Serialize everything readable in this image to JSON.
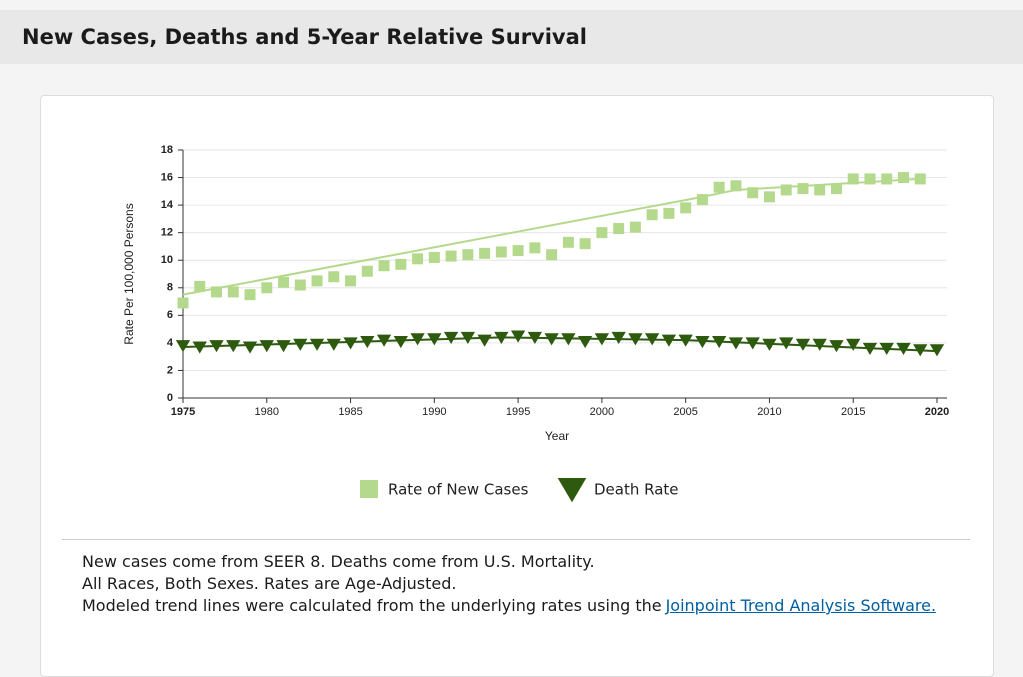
{
  "header": {
    "title": "New Cases, Deaths and 5-Year Relative Survival"
  },
  "chart_data": {
    "type": "scatter",
    "x_label": "Year",
    "y_label": "Rate Per 100,000 Persons",
    "xlim": [
      1975,
      2020
    ],
    "xticks": [
      1975,
      1980,
      1985,
      1990,
      1995,
      2000,
      2005,
      2010,
      2015,
      2020
    ],
    "ylim": [
      0,
      18
    ],
    "yticks": [
      0,
      2,
      4,
      6,
      8,
      10,
      12,
      14,
      16,
      18
    ],
    "grid": true,
    "series": [
      {
        "name": "Rate of New Cases",
        "color": "#b5d98c",
        "marker": "square",
        "x": [
          1975,
          1976,
          1977,
          1978,
          1979,
          1980,
          1981,
          1982,
          1983,
          1984,
          1985,
          1986,
          1987,
          1988,
          1989,
          1990,
          1991,
          1992,
          1993,
          1994,
          1995,
          1996,
          1997,
          1998,
          1999,
          2000,
          2001,
          2002,
          2003,
          2004,
          2005,
          2006,
          2007,
          2008,
          2009,
          2010,
          2011,
          2012,
          2013,
          2014,
          2015,
          2016,
          2017,
          2018,
          2019
        ],
        "values": [
          6.9,
          8.1,
          7.7,
          7.7,
          7.5,
          8.0,
          8.4,
          8.2,
          8.5,
          8.8,
          8.5,
          9.2,
          9.6,
          9.7,
          10.1,
          10.2,
          10.3,
          10.4,
          10.5,
          10.6,
          10.7,
          10.9,
          10.4,
          11.3,
          11.2,
          12.0,
          12.3,
          12.4,
          13.3,
          13.4,
          13.8,
          14.4,
          15.3,
          15.4,
          14.9,
          14.6,
          15.1,
          15.2,
          15.1,
          15.2,
          15.9,
          15.9,
          15.9,
          16.0,
          15.9
        ]
      },
      {
        "name": "Death Rate",
        "color": "#2d5a0e",
        "marker": "triangle-down",
        "x": [
          1975,
          1976,
          1977,
          1978,
          1979,
          1980,
          1981,
          1982,
          1983,
          1984,
          1985,
          1986,
          1987,
          1988,
          1989,
          1990,
          1991,
          1992,
          1993,
          1994,
          1995,
          1996,
          1997,
          1998,
          1999,
          2000,
          2001,
          2002,
          2003,
          2004,
          2005,
          2006,
          2007,
          2008,
          2009,
          2010,
          2011,
          2012,
          2013,
          2014,
          2015,
          2016,
          2017,
          2018,
          2019,
          2020
        ],
        "values": [
          3.8,
          3.7,
          3.8,
          3.8,
          3.7,
          3.8,
          3.8,
          3.9,
          3.9,
          3.9,
          4.0,
          4.1,
          4.2,
          4.1,
          4.3,
          4.3,
          4.4,
          4.4,
          4.2,
          4.4,
          4.5,
          4.4,
          4.3,
          4.3,
          4.1,
          4.3,
          4.4,
          4.3,
          4.3,
          4.2,
          4.2,
          4.1,
          4.1,
          4.0,
          4.0,
          3.9,
          4.0,
          3.9,
          3.9,
          3.8,
          3.9,
          3.6,
          3.6,
          3.6,
          3.5,
          3.5
        ]
      }
    ],
    "trend_lines": [
      {
        "color": "#b5d98c",
        "x": [
          1975,
          2006,
          2008,
          2019
        ],
        "values": [
          7.5,
          14.6,
          15.1,
          15.9
        ]
      },
      {
        "color": "#2d5a0e",
        "x": [
          1975,
          1994,
          2005,
          2020
        ],
        "values": [
          3.7,
          4.4,
          4.2,
          3.4
        ]
      }
    ]
  },
  "notes": [
    "New cases come from SEER 8. Deaths come from U.S. Mortality.",
    "All Races, Both Sexes. Rates are Age-Adjusted."
  ],
  "trend_note": {
    "text": "Modeled trend lines were calculated from the underlying rates using the",
    "link": "Joinpoint Trend Analysis Software."
  }
}
